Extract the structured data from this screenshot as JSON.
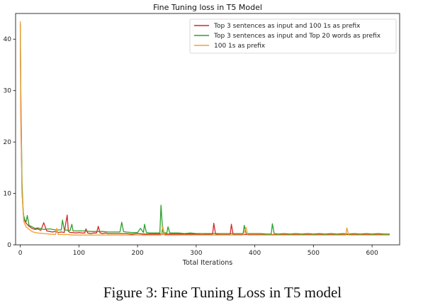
{
  "caption": "Figure 3: Fine Tuning Loss in T5 model",
  "chart_data": {
    "type": "line",
    "title": "Fine Tuning loss in T5 Model",
    "xlabel": "Total Iterations",
    "ylabel": "",
    "xlim": [
      -8,
      647
    ],
    "ylim": [
      0,
      45
    ],
    "xticks": [
      0,
      100,
      200,
      300,
      400,
      500,
      600
    ],
    "yticks": [
      0,
      10,
      20,
      30,
      40
    ],
    "grid": false,
    "legend_position": "top-right",
    "series": [
      {
        "name": "Top 3 sentences as input and 100 1s as prefix",
        "color": "#d62728",
        "x": [
          0,
          1,
          3,
          6,
          10,
          15,
          20,
          25,
          30,
          35,
          40,
          45,
          50,
          55,
          60,
          65,
          70,
          75,
          80,
          82,
          85,
          90,
          95,
          100,
          105,
          110,
          112,
          115,
          120,
          125,
          130,
          133,
          136,
          140,
          145,
          150,
          155,
          160,
          170,
          180,
          190,
          200,
          210,
          220,
          230,
          240,
          250,
          260,
          270,
          280,
          290,
          300,
          310,
          320,
          328,
          330,
          333,
          340,
          350,
          358,
          360,
          363,
          370,
          380,
          390,
          400,
          420,
          440,
          460,
          480,
          500,
          520,
          540,
          560,
          580,
          600,
          620,
          630
        ],
        "y": [
          43,
          25,
          10,
          5,
          4.2,
          3.6,
          3.2,
          3.0,
          3.1,
          2.8,
          4.3,
          2.7,
          2.6,
          2.5,
          2.6,
          2.4,
          2.5,
          2.4,
          5.8,
          2.6,
          2.4,
          2.4,
          2.3,
          2.4,
          2.3,
          2.3,
          3.1,
          2.3,
          2.2,
          2.3,
          2.3,
          3.6,
          2.3,
          2.2,
          2.3,
          2.2,
          2.2,
          2.2,
          2.2,
          2.2,
          2.1,
          2.2,
          2.1,
          2.1,
          2.1,
          2.1,
          2.1,
          2.1,
          2.1,
          2.1,
          2.1,
          2.1,
          2.0,
          2.1,
          2.0,
          4.2,
          2.1,
          2.0,
          2.0,
          2.0,
          4.0,
          2.0,
          2.0,
          2.0,
          2.0,
          2.0,
          2.0,
          2.0,
          2.0,
          2.0,
          2.0,
          2.0,
          2.0,
          2.0,
          2.0,
          2.0,
          2.0,
          2.0
        ]
      },
      {
        "name": "Top 3 sentences as input and Top 20 words as prefix",
        "color": "#2ca02c",
        "x": [
          0,
          1,
          3,
          5,
          8,
          10,
          12,
          15,
          20,
          25,
          30,
          40,
          50,
          60,
          70,
          72,
          75,
          85,
          88,
          90,
          100,
          110,
          120,
          130,
          140,
          150,
          160,
          170,
          173,
          176,
          180,
          190,
          200,
          205,
          210,
          212,
          215,
          220,
          230,
          238,
          240,
          243,
          250,
          252,
          255,
          260,
          270,
          280,
          290,
          300,
          310,
          320,
          330,
          340,
          350,
          360,
          370,
          380,
          382,
          385,
          390,
          400,
          410,
          420,
          428,
          430,
          433,
          440,
          450,
          460,
          470,
          480,
          490,
          500,
          510,
          520,
          530,
          540,
          550,
          560,
          570,
          580,
          590,
          600,
          610,
          620,
          630
        ],
        "y": [
          43,
          30,
          12,
          6,
          4.8,
          4.5,
          5.7,
          3.8,
          3.5,
          3.2,
          3.3,
          3.0,
          3.1,
          2.9,
          2.9,
          4.8,
          2.9,
          2.8,
          4.0,
          2.7,
          2.7,
          2.7,
          2.6,
          2.6,
          2.6,
          2.5,
          2.5,
          2.5,
          4.4,
          2.6,
          2.5,
          2.4,
          2.4,
          3.2,
          2.4,
          4.0,
          2.4,
          2.3,
          2.3,
          2.3,
          7.7,
          2.4,
          2.3,
          3.5,
          2.3,
          2.3,
          2.3,
          2.2,
          2.3,
          2.2,
          2.2,
          2.2,
          2.2,
          2.2,
          2.2,
          2.2,
          2.2,
          2.2,
          3.8,
          2.2,
          2.2,
          2.2,
          2.2,
          2.1,
          2.1,
          4.1,
          2.2,
          2.1,
          2.2,
          2.1,
          2.2,
          2.1,
          2.2,
          2.1,
          2.2,
          2.1,
          2.2,
          2.1,
          2.2,
          2.1,
          2.2,
          2.1,
          2.2,
          2.1,
          2.2,
          2.1,
          2.1
        ]
      },
      {
        "name": "100 1s as prefix",
        "color": "#f0a030",
        "x": [
          0,
          1,
          3,
          6,
          10,
          15,
          20,
          25,
          30,
          40,
          50,
          60,
          62,
          65,
          70,
          80,
          90,
          100,
          110,
          120,
          130,
          140,
          150,
          160,
          170,
          180,
          190,
          200,
          210,
          220,
          230,
          240,
          243,
          246,
          250,
          260,
          270,
          280,
          290,
          300,
          310,
          320,
          330,
          340,
          350,
          360,
          370,
          380,
          385,
          388,
          390,
          400,
          420,
          440,
          460,
          480,
          500,
          520,
          540,
          555,
          557,
          560,
          570,
          580,
          600,
          620,
          630
        ],
        "y": [
          43.5,
          28,
          10,
          4.5,
          3.5,
          3.0,
          2.6,
          2.4,
          2.3,
          2.2,
          2.1,
          2.0,
          3.2,
          2.0,
          2.0,
          2.0,
          1.9,
          1.9,
          1.9,
          1.9,
          1.9,
          1.9,
          1.9,
          1.9,
          1.9,
          1.9,
          1.9,
          1.9,
          1.9,
          1.9,
          1.9,
          1.9,
          3.6,
          1.9,
          1.9,
          1.9,
          1.9,
          1.9,
          1.9,
          1.9,
          1.9,
          1.9,
          1.9,
          1.9,
          1.9,
          1.9,
          1.9,
          1.9,
          3.4,
          1.9,
          1.9,
          1.9,
          1.9,
          1.9,
          1.9,
          1.9,
          1.9,
          1.9,
          1.9,
          1.9,
          3.3,
          1.9,
          1.9,
          1.9,
          1.9,
          1.9,
          1.9
        ]
      }
    ]
  }
}
